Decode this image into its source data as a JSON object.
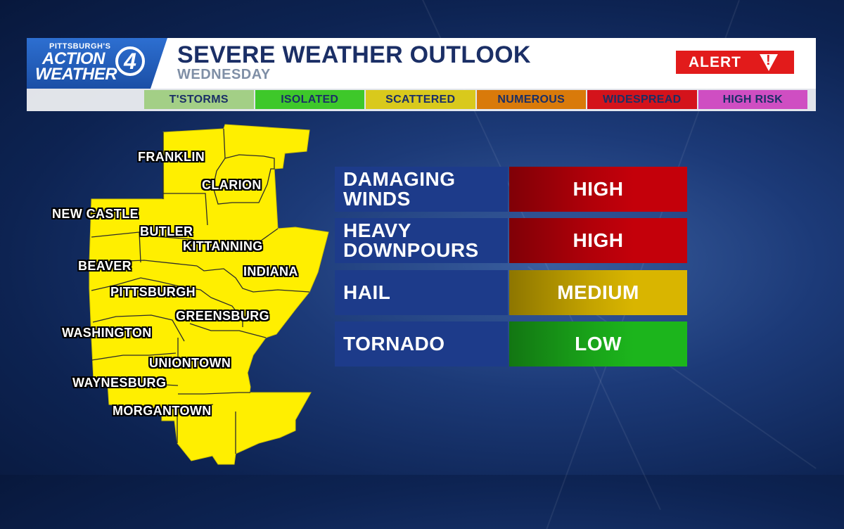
{
  "header": {
    "logo_top": "PITTSBURGH'S",
    "logo_line1": "ACTION",
    "logo_line2": "WEATHER",
    "logo_number": "4",
    "title": "SEVERE WEATHER OUTLOOK",
    "subtitle": "WEDNESDAY",
    "alert_label": "ALERT",
    "alert_icon": "warning-triangle-icon"
  },
  "scale": [
    {
      "label": "T'STORMS",
      "color": "#a3cf86"
    },
    {
      "label": "ISOLATED",
      "color": "#3ec82a"
    },
    {
      "label": "SCATTERED",
      "color": "#d9c91c"
    },
    {
      "label": "NUMEROUS",
      "color": "#d97a0a"
    },
    {
      "label": "WIDESPREAD",
      "color": "#d4131b"
    },
    {
      "label": "HIGH RISK",
      "color": "#cf4ec2"
    }
  ],
  "map": {
    "region_color": "#ffef00",
    "cities": [
      "FRANKLIN",
      "CLARION",
      "NEW CASTLE",
      "BUTLER",
      "KITTANNING",
      "BEAVER",
      "INDIANA",
      "PITTSBURGH",
      "GREENSBURG",
      "WASHINGTON",
      "UNIONTOWN",
      "WAYNESBURG",
      "MORGANTOWN"
    ]
  },
  "threats": [
    {
      "label": "DAMAGING\nWINDS",
      "level": "HIGH",
      "color": "#c4000a"
    },
    {
      "label": "HEAVY\nDOWNPOURS",
      "level": "HIGH",
      "color": "#c4000a"
    },
    {
      "label": "HAIL",
      "level": "MEDIUM",
      "color": "#d9b500"
    },
    {
      "label": "TORNADO",
      "level": "LOW",
      "color": "#1cb51c"
    }
  ]
}
